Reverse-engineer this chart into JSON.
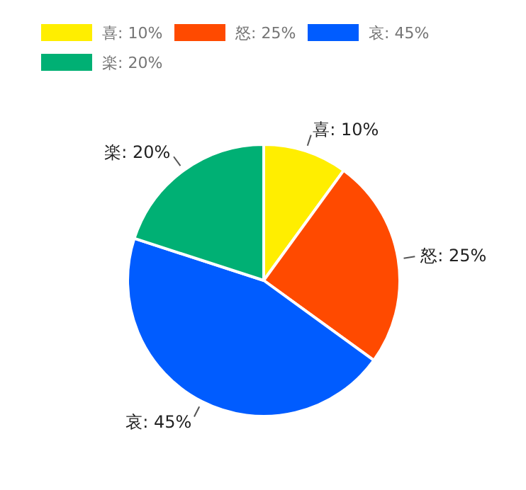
{
  "chart_data": {
    "type": "pie",
    "categories": [
      "喜: 10%",
      "怒: 25%",
      "哀: 45%",
      "楽: 20%"
    ],
    "values": [
      10,
      25,
      45,
      20
    ],
    "colors": [
      "#ffee00",
      "#ff4a00",
      "#005cff",
      "#00b074"
    ],
    "legend": "top"
  }
}
